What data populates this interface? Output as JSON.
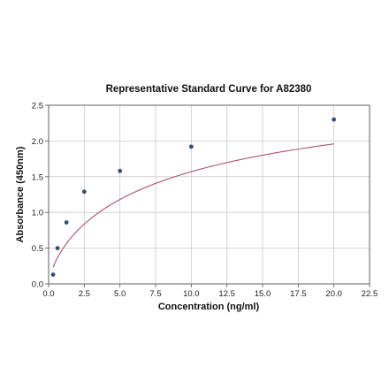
{
  "chart_data": {
    "type": "scatter",
    "title": "Representative Standard Curve for A82380",
    "xlabel": "Concentration (ng/ml)",
    "ylabel": "Absorbance (450nm)",
    "xlim": [
      0.0,
      22.5
    ],
    "ylim": [
      0.0,
      2.5
    ],
    "x_ticks": [
      "0.0",
      "2.5",
      "5.0",
      "7.5",
      "10.0",
      "12.5",
      "15.0",
      "17.5",
      "20.0",
      "22.5"
    ],
    "y_ticks": [
      "0.0",
      "0.5",
      "1.0",
      "1.5",
      "2.0",
      "2.5"
    ],
    "grid": true,
    "legend": "none",
    "series": [
      {
        "x": [
          0.313,
          0.625,
          1.25,
          2.5,
          5.0,
          10.0,
          20.0
        ],
        "y": [
          0.13,
          0.5,
          0.86,
          1.29,
          1.58,
          1.92,
          2.3
        ]
      }
    ],
    "fit_curve": {
      "type": "4PL",
      "a": 0.0,
      "b": 0.73,
      "c": 10.0,
      "d": 3.14
    },
    "colors": {
      "points": "#3b4a7a",
      "curve": "#b0506a",
      "grid": "#cccccc",
      "axis": "#555555"
    }
  }
}
